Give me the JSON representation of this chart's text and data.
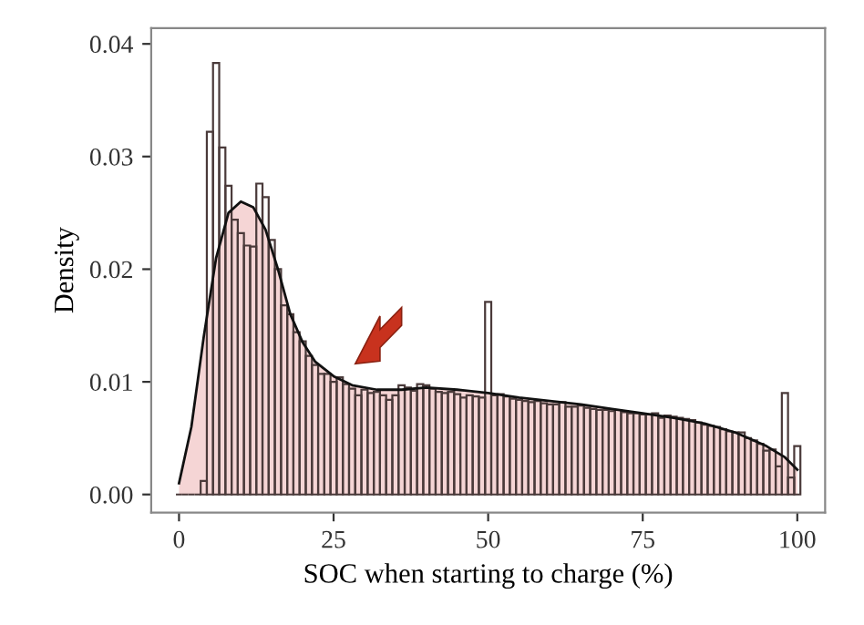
{
  "chart_data": {
    "type": "histogram",
    "xlabel": "SOC when starting to charge (%)",
    "ylabel": "Density",
    "bins": [
      -0.5,
      0.5,
      1.5,
      2.5,
      3.5,
      4.5,
      5.5,
      6.5,
      7.5,
      8.5,
      9.5,
      10.5,
      11.5,
      12.5,
      13.5,
      14.5,
      15.5,
      16.5,
      17.5,
      18.5,
      19.5,
      20.5,
      21.5,
      22.5,
      23.5,
      24.5,
      25.5,
      26.5,
      27.5,
      28.5,
      29.5,
      30.5,
      31.5,
      32.5,
      33.5,
      34.5,
      35.5,
      36.5,
      37.5,
      38.5,
      39.5,
      40.5,
      41.5,
      42.5,
      43.5,
      44.5,
      45.5,
      46.5,
      47.5,
      48.5,
      49.5,
      50.5,
      51.5,
      52.5,
      53.5,
      54.5,
      55.5,
      56.5,
      57.5,
      58.5,
      59.5,
      60.5,
      61.5,
      62.5,
      63.5,
      64.5,
      65.5,
      66.5,
      67.5,
      68.5,
      69.5,
      70.5,
      71.5,
      72.5,
      73.5,
      74.5,
      75.5,
      76.5,
      77.5,
      78.5,
      79.5,
      80.5,
      81.5,
      82.5,
      83.5,
      84.5,
      85.5,
      86.5,
      87.5,
      88.5,
      89.5,
      90.5,
      91.5,
      92.5,
      93.5,
      94.5,
      95.5,
      96.5,
      97.5,
      98.5,
      99.5,
      100.5
    ],
    "series": [
      {
        "color": "#4a3a3a",
        "values": [
          0,
          0,
          0,
          0,
          0.0012,
          0.0322,
          0.0383,
          0.0308,
          0.0274,
          0.0244,
          0.0232,
          0.0221,
          0.022,
          0.0276,
          0.0264,
          0.0226,
          0.02,
          0.0168,
          0.016,
          0.0144,
          0.0136,
          0.0123,
          0.0115,
          0.0107,
          0.0107,
          0.01,
          0.0104,
          0.0098,
          0.0094,
          0.0088,
          0.0093,
          0.009,
          0.0091,
          0.0088,
          0.0084,
          0.0088,
          0.0097,
          0.0095,
          0.0092,
          0.0098,
          0.0097,
          0.0094,
          0.0091,
          0.009,
          0.0091,
          0.0089,
          0.0086,
          0.0088,
          0.0087,
          0.0086,
          0.0171,
          0.0088,
          0.0089,
          0.0087,
          0.0085,
          0.0084,
          0.0083,
          0.0082,
          0.0083,
          0.0081,
          0.008,
          0.008,
          0.0082,
          0.0078,
          0.0078,
          0.0079,
          0.0077,
          0.0076,
          0.0075,
          0.0075,
          0.0074,
          0.0075,
          0.0073,
          0.0072,
          0.0072,
          0.0071,
          0.0071,
          0.0072,
          0.0068,
          0.007,
          0.0069,
          0.0068,
          0.0067,
          0.0066,
          0.0064,
          0.0062,
          0.0061,
          0.006,
          0.0058,
          0.0056,
          0.0055,
          0.0055,
          0.005,
          0.0048,
          0.0045,
          0.0039,
          0.004,
          0.0025,
          0.009,
          0.0015,
          0.0043
        ]
      },
      {
        "type": "area",
        "color": "#f5d5d5",
        "x": [
          0,
          2,
          4,
          6,
          8,
          10,
          12,
          14,
          16,
          18,
          20,
          22,
          25,
          28,
          32,
          36,
          40,
          45,
          50,
          55,
          60,
          65,
          70,
          75,
          80,
          85,
          90,
          95,
          98,
          100
        ],
        "values": [
          0.001,
          0.006,
          0.014,
          0.021,
          0.025,
          0.026,
          0.0255,
          0.0235,
          0.02,
          0.016,
          0.0135,
          0.0118,
          0.0105,
          0.0097,
          0.0093,
          0.0093,
          0.0095,
          0.0093,
          0.009,
          0.0086,
          0.0083,
          0.008,
          0.0076,
          0.0072,
          0.0068,
          0.0063,
          0.0055,
          0.0043,
          0.0033,
          0.0022
        ]
      }
    ],
    "xlim": [
      -4.5,
      104.5
    ],
    "ylim": [
      -0.0016,
      0.0414
    ],
    "xticks": [
      0,
      25,
      50,
      75,
      100
    ],
    "yticks": [
      {
        "value": 0,
        "label": "0.00"
      },
      {
        "value": 0.01,
        "label": "0.01"
      },
      {
        "value": 0.02,
        "label": "0.02"
      },
      {
        "value": 0.03,
        "label": "0.03"
      },
      {
        "value": 0.04,
        "label": "0.04"
      }
    ],
    "grid": false,
    "legend": false
  }
}
